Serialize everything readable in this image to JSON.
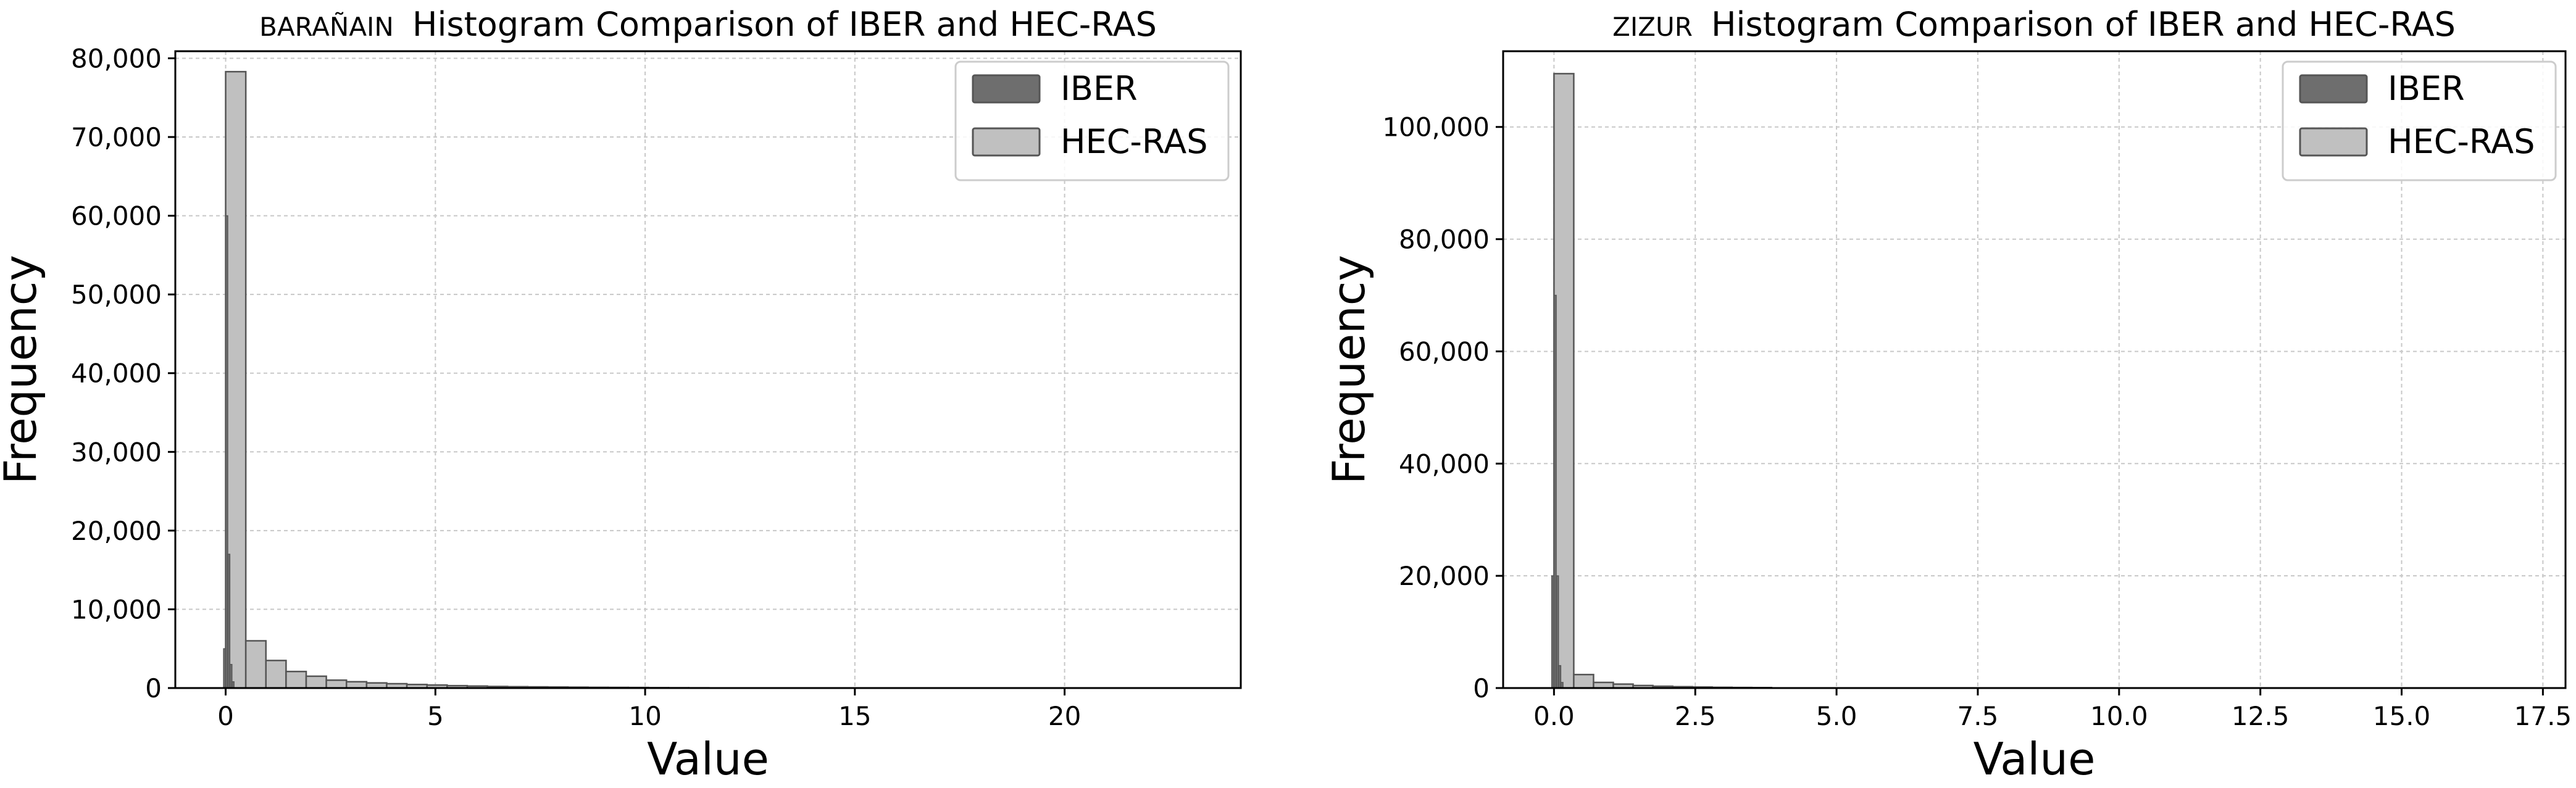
{
  "colors": {
    "iber": "#6e6e6e",
    "hecras": "#c0c0c0",
    "edge": "#555555",
    "grid": "#c8c8c8"
  },
  "chart_data": [
    {
      "type": "bar",
      "subtype": "histogram",
      "title_prefix": "BARAÑAIN",
      "title": "Histogram Comparison of IBER and HEC-RAS",
      "xlabel": "Value",
      "ylabel": "Frequency",
      "xlim": [
        -1.2,
        24.2
      ],
      "ylim": [
        0,
        80900
      ],
      "xticks": [
        0,
        5,
        10,
        15,
        20
      ],
      "xtick_labels": [
        "0",
        "5",
        "10",
        "15",
        "20"
      ],
      "yticks": [
        0,
        10000,
        20000,
        30000,
        40000,
        50000,
        60000,
        70000,
        80000
      ],
      "ytick_labels": [
        "0",
        "10,000",
        "20,000",
        "30,000",
        "40,000",
        "50,000",
        "60,000",
        "70,000",
        "80,000"
      ],
      "grid": true,
      "legend_position": "top-right",
      "series": [
        {
          "name": "IBER",
          "bins": [
            [
              -0.05,
              0.0,
              5000
            ],
            [
              0.0,
              0.05,
              60000
            ],
            [
              0.05,
              0.1,
              17000
            ],
            [
              0.1,
              0.15,
              3000
            ],
            [
              0.15,
              0.2,
              800
            ]
          ]
        },
        {
          "name": "HEC-RAS",
          "bins": [
            [
              0.0,
              0.48,
              78300
            ],
            [
              0.48,
              0.96,
              6000
            ],
            [
              0.96,
              1.44,
              3500
            ],
            [
              1.44,
              1.92,
              2100
            ],
            [
              1.92,
              2.4,
              1500
            ],
            [
              2.4,
              2.88,
              1000
            ],
            [
              2.88,
              3.36,
              800
            ],
            [
              3.36,
              3.84,
              650
            ],
            [
              3.84,
              4.32,
              550
            ],
            [
              4.32,
              4.8,
              450
            ],
            [
              4.8,
              5.28,
              380
            ],
            [
              5.28,
              5.76,
              300
            ],
            [
              5.76,
              6.24,
              250
            ],
            [
              6.24,
              6.72,
              200
            ],
            [
              6.72,
              7.2,
              170
            ],
            [
              7.2,
              7.68,
              150
            ],
            [
              7.68,
              8.16,
              130
            ],
            [
              8.16,
              8.64,
              110
            ],
            [
              8.64,
              9.12,
              90
            ],
            [
              9.12,
              9.6,
              80
            ],
            [
              9.6,
              10.08,
              70
            ],
            [
              10.08,
              10.56,
              50
            ],
            [
              10.56,
              11.04,
              40
            ],
            [
              11.04,
              11.52,
              30
            ]
          ]
        }
      ]
    },
    {
      "type": "bar",
      "subtype": "histogram",
      "title_prefix": "ZIZUR",
      "title": "Histogram Comparison of IBER and HEC-RAS",
      "xlabel": "Value",
      "ylabel": "Frequency",
      "xlim": [
        -0.9,
        17.9
      ],
      "ylim": [
        0,
        113500
      ],
      "xticks": [
        0,
        2.5,
        5,
        7.5,
        10,
        12.5,
        15,
        17.5
      ],
      "xtick_labels": [
        "0.0",
        "2.5",
        "5.0",
        "7.5",
        "10.0",
        "12.5",
        "15.0",
        "17.5"
      ],
      "yticks": [
        0,
        20000,
        40000,
        60000,
        80000,
        100000
      ],
      "ytick_labels": [
        "0",
        "20,000",
        "40,000",
        "60,000",
        "80,000",
        "100,000"
      ],
      "grid": true,
      "legend_position": "top-right",
      "series": [
        {
          "name": "IBER",
          "bins": [
            [
              -0.04,
              0.0,
              20000
            ],
            [
              0.0,
              0.04,
              70000
            ],
            [
              0.04,
              0.08,
              20000
            ],
            [
              0.08,
              0.12,
              4000
            ],
            [
              0.12,
              0.16,
              1000
            ]
          ]
        },
        {
          "name": "HEC-RAS",
          "bins": [
            [
              0.0,
              0.35,
              109500
            ],
            [
              0.35,
              0.7,
              2400
            ],
            [
              0.7,
              1.05,
              1000
            ],
            [
              1.05,
              1.4,
              700
            ],
            [
              1.4,
              1.75,
              450
            ],
            [
              1.75,
              2.1,
              320
            ],
            [
              2.1,
              2.45,
              240
            ],
            [
              2.45,
              2.8,
              180
            ],
            [
              2.8,
              3.15,
              130
            ],
            [
              3.15,
              3.5,
              100
            ],
            [
              3.5,
              3.85,
              80
            ]
          ]
        }
      ]
    }
  ]
}
